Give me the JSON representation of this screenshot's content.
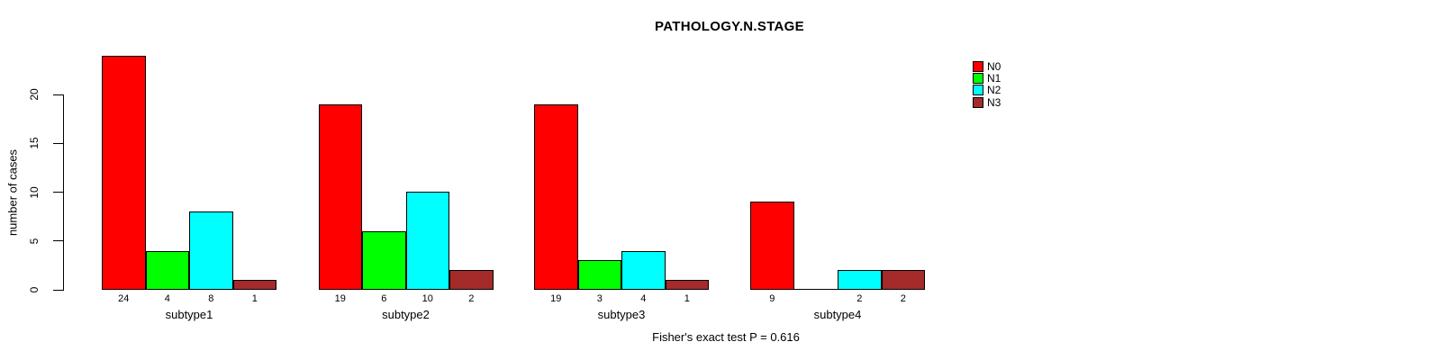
{
  "chart_data": {
    "type": "bar",
    "title": "PATHOLOGY.N.STAGE",
    "ylabel": "number of cases",
    "xlabel": "",
    "yticks": [
      0,
      5,
      10,
      15,
      20
    ],
    "ylim": [
      0,
      24
    ],
    "grid": false,
    "legend_position": "top-right",
    "categories": [
      "subtype1",
      "subtype2",
      "subtype3",
      "subtype4"
    ],
    "series": [
      {
        "name": "N0",
        "color": "#FF0000",
        "values": [
          24,
          19,
          19,
          9
        ]
      },
      {
        "name": "N1",
        "color": "#00FF00",
        "values": [
          4,
          6,
          3,
          0
        ]
      },
      {
        "name": "N2",
        "color": "#00FFFF",
        "values": [
          8,
          10,
          4,
          2
        ]
      },
      {
        "name": "N3",
        "color": "#A52A2A",
        "values": [
          1,
          2,
          1,
          2
        ]
      }
    ],
    "bar_labels": [
      [
        "24",
        "4",
        "8",
        "1"
      ],
      [
        "19",
        "6",
        "10",
        "2"
      ],
      [
        "19",
        "3",
        "4",
        "1"
      ],
      [
        "9",
        "",
        "2",
        "2"
      ]
    ],
    "annotation": "Fisher's exact test P = 0.616"
  }
}
